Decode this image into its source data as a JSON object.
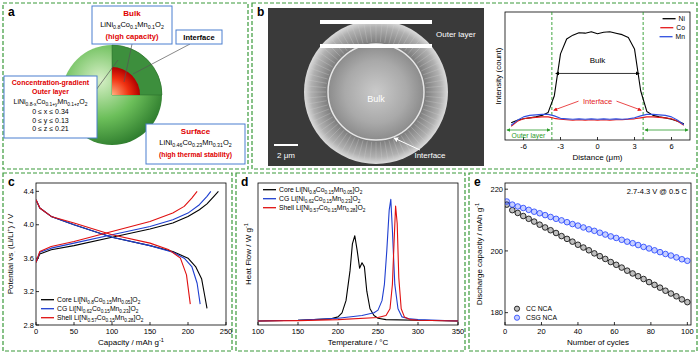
{
  "panels": [
    "a",
    "b",
    "c",
    "d",
    "e"
  ],
  "diagram": {
    "bulk": {
      "title": "Bulk",
      "formula": "LiNi0.8Co0.1Mn0.1O2",
      "note": "(high capacity)"
    },
    "interface": "Interface",
    "outer_layer": {
      "title": [
        "Concentration-gradient",
        "Outer layer"
      ],
      "formula": "LiNi0.8-xCo0.1+yMn0.1+zO2",
      "ranges": [
        "0 ≤ x ≤ 0.34",
        "0 ≤ y ≤ 0.13",
        "0 ≤ z ≤ 0.21"
      ]
    },
    "surface": {
      "title": "Surface",
      "formula": "LiNi0.46Co0.23Mn0.31O2",
      "note": "(high thermal stability)"
    }
  },
  "micrograph": {
    "outer_layer": "Outer layer",
    "bulk": "Bulk",
    "interface": "Interface",
    "scale_bar": "2 μm"
  },
  "chart_data": [
    {
      "type": "line",
      "x_label": "Distance (μm)",
      "y_label": "Intensity (count)",
      "xlim": [
        -7.5,
        7.5
      ],
      "xticks": [
        -6,
        -3,
        0,
        3,
        6
      ],
      "ylim": [
        0,
        2600
      ],
      "tick_labels": "x",
      "legend": "upper right",
      "x": [
        -7,
        -6.5,
        -6,
        -5.5,
        -5,
        -4.5,
        -4,
        -3.5,
        -3,
        -2.5,
        -2,
        -1.5,
        -1,
        -0.5,
        0,
        0.5,
        1,
        1.5,
        2,
        2.5,
        3,
        3.5,
        4,
        4.5,
        5,
        5.5,
        6,
        6.5,
        7
      ],
      "series": [
        {
          "name": "Ni",
          "color": "#000000",
          "values": [
            350,
            400,
            430,
            450,
            470,
            500,
            560,
            900,
            1750,
            2050,
            2130,
            2180,
            2170,
            2200,
            2160,
            2190,
            2200,
            2170,
            2140,
            2080,
            1850,
            1000,
            580,
            500,
            470,
            450,
            420,
            380,
            330
          ]
        },
        {
          "name": "Co",
          "color": "#e41a1c",
          "values": [
            280,
            380,
            430,
            450,
            460,
            470,
            470,
            440,
            420,
            410,
            400,
            410,
            400,
            410,
            400,
            410,
            400,
            410,
            410,
            420,
            430,
            450,
            470,
            470,
            460,
            450,
            430,
            380,
            300
          ]
        },
        {
          "name": "Mn",
          "color": "#3050e0",
          "values": [
            300,
            400,
            470,
            500,
            510,
            520,
            520,
            490,
            440,
            430,
            420,
            430,
            420,
            430,
            420,
            430,
            420,
            430,
            420,
            430,
            450,
            490,
            520,
            520,
            510,
            500,
            470,
            400,
            310
          ]
        }
      ],
      "annotations": {
        "bulk": "Bulk",
        "interface": "Interface",
        "outer_layer": "Outer layer"
      },
      "region_bounds": [
        -3.7,
        3.7
      ]
    },
    {
      "type": "line",
      "x_label": "Capacity / mAh g-1",
      "y_label": "Potential vs. (Li/Li+) / V",
      "xlim": [
        0,
        250
      ],
      "xticks": [
        0,
        50,
        100,
        150,
        200,
        250
      ],
      "ylim": [
        2.8,
        4.5
      ],
      "yticks": [
        2.8,
        3.2,
        3.6,
        {
          "value": 4,
          "label": "4.0"
        },
        4.4
      ],
      "legend": "lower left",
      "series": [
        {
          "name": "Core Li[Ni0.8Co0.15Mn0.05]O2",
          "color": "#000000",
          "charge": {
            "x": [
              0,
              5,
              20,
              50,
              100,
              150,
              180,
              200,
              215,
              225,
              235,
              240
            ],
            "values": [
              3.55,
              3.65,
              3.7,
              3.75,
              3.85,
              3.95,
              4.02,
              4.1,
              4.18,
              4.25,
              4.35,
              4.4
            ]
          },
          "discharge": {
            "x": [
              0,
              5,
              20,
              50,
              100,
              150,
              180,
              200,
              210,
              218,
              222,
              225
            ],
            "values": [
              4.3,
              4.2,
              4.1,
              4.0,
              3.85,
              3.75,
              3.68,
              3.6,
              3.5,
              3.35,
              3.15,
              3.0
            ]
          }
        },
        {
          "name": "CG Li[Ni0.62Co0.15Mn0.23]O2",
          "color": "#1f3fd0",
          "charge": {
            "x": [
              0,
              5,
              20,
              50,
              100,
              150,
              180,
              200,
              215,
              225,
              230
            ],
            "values": [
              3.55,
              3.67,
              3.72,
              3.78,
              3.88,
              3.98,
              4.06,
              4.14,
              4.24,
              4.34,
              4.4
            ]
          },
          "discharge": {
            "x": [
              0,
              5,
              20,
              50,
              100,
              150,
              180,
              195,
              205,
              212,
              216
            ],
            "values": [
              4.3,
              4.2,
              4.1,
              4.0,
              3.85,
              3.75,
              3.67,
              3.6,
              3.5,
              3.3,
              3.05
            ]
          }
        },
        {
          "name": "Shell Li[Ni0.57Co0.15Mn0.28]O2",
          "color": "#e01010",
          "charge": {
            "x": [
              0,
              5,
              20,
              50,
              100,
              150,
              180,
              195,
              205,
              212
            ],
            "values": [
              3.55,
              3.68,
              3.74,
              3.8,
              3.92,
              4.04,
              4.14,
              4.22,
              4.32,
              4.4
            ]
          },
          "discharge": {
            "x": [
              0,
              5,
              20,
              50,
              100,
              150,
              175,
              190,
              198,
              203
            ],
            "values": [
              4.3,
              4.2,
              4.1,
              4.02,
              3.88,
              3.78,
              3.7,
              3.6,
              3.4,
              3.05
            ]
          }
        }
      ]
    },
    {
      "type": "line",
      "x_label": "Temperature / °C",
      "y_label": "Heat Flow / W g-1",
      "xlim": [
        100,
        350
      ],
      "xticks": [
        100,
        150,
        200,
        250,
        300,
        350
      ],
      "ylim": [
        0,
        10.5
      ],
      "tick_labels": "x",
      "legend": "upper left",
      "series": [
        {
          "name": "Core Li[Ni0.8Co0.15Mn0.05]O2",
          "color": "#000000",
          "x": [
            100,
            150,
            190,
            200,
            205,
            210,
            215,
            218,
            221,
            224,
            227,
            230,
            233,
            236,
            240,
            245,
            250,
            260,
            300,
            350
          ],
          "values": [
            0.3,
            0.35,
            0.45,
            0.6,
            0.9,
            1.8,
            4.0,
            6.0,
            6.6,
            5.5,
            4.2,
            4.6,
            4.3,
            2.5,
            1.2,
            0.7,
            0.5,
            0.4,
            0.35,
            0.3
          ]
        },
        {
          "name": "CG Li[Ni0.62Co0.15Mn0.23]O2",
          "color": "#1f3fd0",
          "x": [
            100,
            150,
            200,
            230,
            245,
            250,
            255,
            258,
            261,
            264,
            266,
            268,
            271,
            275,
            280,
            290,
            300,
            350
          ],
          "values": [
            0.3,
            0.35,
            0.5,
            0.7,
            0.9,
            1.1,
            1.8,
            3.0,
            5.5,
            8.5,
            9.3,
            7.0,
            3.0,
            1.2,
            0.6,
            0.45,
            0.4,
            0.3
          ]
        },
        {
          "name": "Shell Li[Ni0.57Co0.15Mn0.28]O2",
          "color": "#e01010",
          "x": [
            100,
            150,
            200,
            250,
            260,
            265,
            268,
            270,
            272,
            274,
            276,
            279,
            283,
            290,
            300,
            350
          ],
          "values": [
            0.3,
            0.32,
            0.4,
            0.55,
            0.7,
            1.2,
            3.0,
            6.0,
            8.8,
            7.5,
            3.5,
            1.2,
            0.6,
            0.4,
            0.35,
            0.3
          ]
        }
      ]
    },
    {
      "type": "scatter",
      "x_label": "Number of cycles",
      "y_label": "Discharge capacity / mAh g-1",
      "xlim": [
        0,
        102
      ],
      "xticks": [
        0,
        20,
        40,
        60,
        80,
        100
      ],
      "ylim": [
        176,
        222
      ],
      "yticks": [
        180,
        200,
        220
      ],
      "legend": "lower left",
      "annotation": "2.7-4.3 V @ 0.5 C",
      "x": [
        1,
        4,
        7,
        10,
        13,
        16,
        19,
        22,
        25,
        28,
        31,
        34,
        37,
        40,
        43,
        46,
        49,
        52,
        55,
        58,
        61,
        64,
        67,
        70,
        73,
        76,
        79,
        82,
        85,
        88,
        91,
        94,
        97,
        100
      ],
      "series": [
        {
          "name": "CC NCA",
          "color": "#000000",
          "marker": "circle",
          "values": [
            215.0,
            213.2,
            212.3,
            211.3,
            210.4,
            209.5,
            208.5,
            207.6,
            206.7,
            205.8,
            204.8,
            203.9,
            203.0,
            202.0,
            201.1,
            200.2,
            199.2,
            198.3,
            197.4,
            196.4,
            195.5,
            194.6,
            193.6,
            192.7,
            191.8,
            190.9,
            189.9,
            189.0,
            188.1,
            187.1,
            186.2,
            185.3,
            184.3,
            183.4
          ]
        },
        {
          "name": "CSG NCA",
          "color": "#2040ff",
          "marker": "circle",
          "values": [
            216.0,
            215.0,
            214.4,
            213.9,
            213.3,
            212.7,
            212.2,
            211.6,
            211.0,
            210.4,
            209.9,
            209.3,
            208.7,
            208.2,
            207.6,
            207.0,
            206.5,
            205.9,
            205.3,
            204.7,
            204.2,
            203.6,
            203.0,
            202.5,
            201.9,
            201.3,
            200.8,
            200.2,
            199.6,
            199.0,
            198.5,
            197.9,
            197.3,
            196.8
          ]
        }
      ]
    }
  ]
}
